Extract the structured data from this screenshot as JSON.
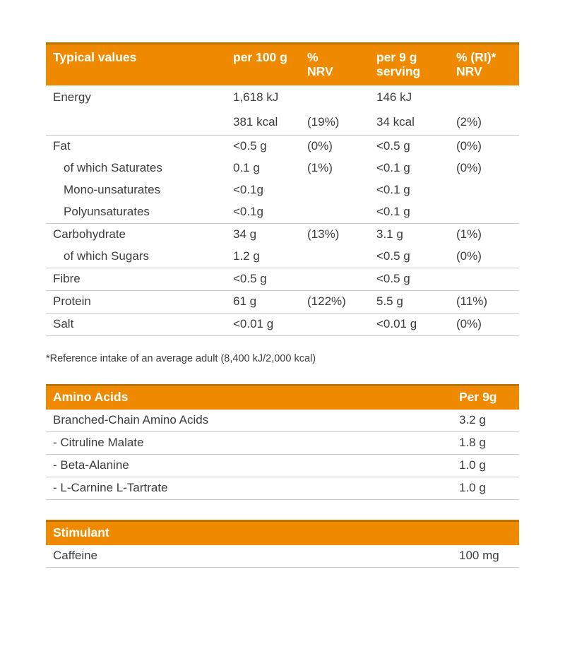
{
  "colors": {
    "header_background": "#ef8a00",
    "header_top_border": "#b97100",
    "header_text": "#ffffff",
    "body_text": "#3c3c3c",
    "divider": "#c9c9c9"
  },
  "nutrition_table": {
    "headers": {
      "col1": "Typical values",
      "col2": "per 100 g",
      "col3": "%\nNRV",
      "col4": "per 9 g\nserving",
      "col5": "% (RI)*\nNRV"
    },
    "groups": [
      {
        "rows": [
          {
            "label": "Energy",
            "per100": "1,618 kJ",
            "nrv": "",
            "per9": "146 kJ",
            "ri": ""
          },
          {
            "label": "",
            "per100": "381 kcal",
            "nrv": "(19%)",
            "per9": "34 kcal",
            "ri": "(2%)"
          }
        ]
      },
      {
        "rows": [
          {
            "label": "Fat",
            "per100": "<0.5 g",
            "nrv": "(0%)",
            "per9": "<0.5 g",
            "ri": "(0%)"
          },
          {
            "label": "of which Saturates",
            "per100": "0.1 g",
            "nrv": "(1%)",
            "per9": "<0.1 g",
            "ri": "(0%)"
          },
          {
            "label": "Mono-unsaturates",
            "per100": "<0.1g",
            "nrv": "",
            "per9": "<0.1 g",
            "ri": ""
          },
          {
            "label": "Polyunsaturates",
            "per100": "<0.1g",
            "nrv": "",
            "per9": "<0.1 g",
            "ri": ""
          }
        ]
      },
      {
        "rows": [
          {
            "label": "Carbohydrate",
            "per100": "34 g",
            "nrv": "(13%)",
            "per9": "3.1 g",
            "ri": "(1%)"
          },
          {
            "label": "of which Sugars",
            "per100": "1.2 g",
            "nrv": "",
            "per9": "<0.5 g",
            "ri": "(0%)"
          }
        ]
      },
      {
        "rows": [
          {
            "label": "Fibre",
            "per100": "<0.5 g",
            "nrv": "",
            "per9": "<0.5 g",
            "ri": ""
          }
        ]
      },
      {
        "rows": [
          {
            "label": "Protein",
            "per100": "61 g",
            "nrv": "(122%)",
            "per9": "5.5 g",
            "ri": "(11%)"
          }
        ]
      },
      {
        "rows": [
          {
            "label": "Salt",
            "per100": "<0.01 g",
            "nrv": "",
            "per9": "<0.01 g",
            "ri": "(0%)"
          }
        ]
      }
    ]
  },
  "footnote": "*Reference intake of an average adult (8,400 kJ/2,000 kcal)",
  "amino_table": {
    "header": {
      "title": "Amino Acids",
      "unit": "Per 9g"
    },
    "rows": [
      {
        "label": "Branched-Chain Amino Acids",
        "value": "3.2 g"
      },
      {
        "label": "- Citruline Malate",
        "value": "1.8 g"
      },
      {
        "label": "- Beta-Alanine",
        "value": "1.0 g"
      },
      {
        "label": "- L-Carnine L-Tartrate",
        "value": "1.0 g"
      }
    ]
  },
  "stimulant_table": {
    "header": {
      "title": "Stimulant"
    },
    "rows": [
      {
        "label": "Caffeine",
        "value": "100 mg"
      }
    ]
  }
}
